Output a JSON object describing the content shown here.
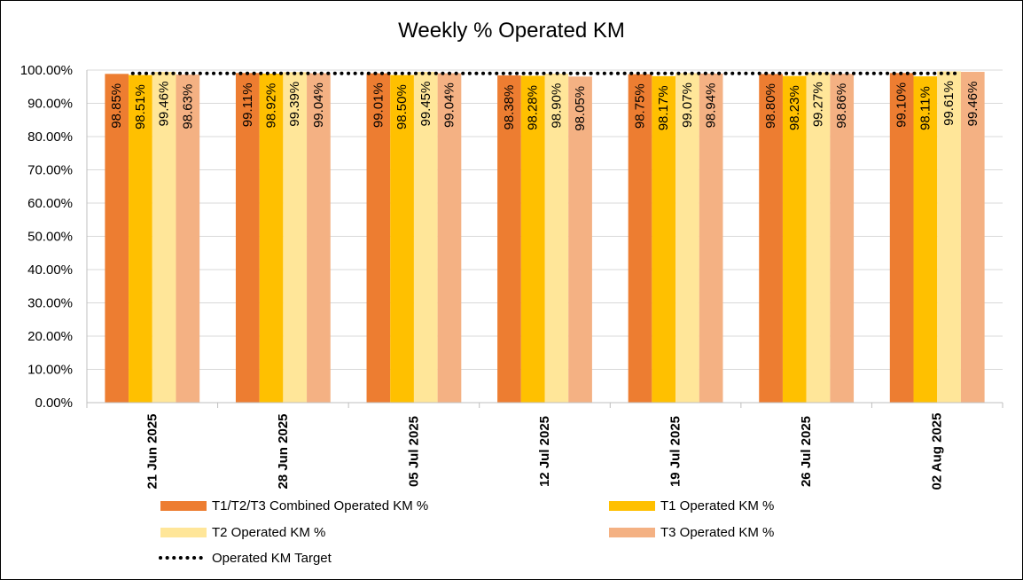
{
  "chart_data": {
    "type": "bar",
    "title": "Weekly % Operated KM",
    "categories": [
      "21 Jun 2025",
      "28 Jun 2025",
      "05 Jul 2025",
      "12 Jul 2025",
      "19 Jul 2025",
      "26 Jul 2025",
      "02 Aug 2025"
    ],
    "series": [
      {
        "name": "T1/T2/T3 Combined Operated KM %",
        "color": "#ED7D31",
        "values": [
          98.85,
          99.11,
          99.01,
          98.38,
          98.75,
          98.8,
          99.1
        ],
        "labels": [
          "98.85%",
          "99.11%",
          "99.01%",
          "98.38%",
          "98.75%",
          "98.80%",
          "99.10%"
        ]
      },
      {
        "name": "T1 Operated KM %",
        "color": "#FFC000",
        "values": [
          98.51,
          98.92,
          98.5,
          98.28,
          98.17,
          98.23,
          98.11
        ],
        "labels": [
          "98.51%",
          "98.92%",
          "98.50%",
          "98.28%",
          "98.17%",
          "98.23%",
          "98.11%"
        ]
      },
      {
        "name": "T2 Operated KM %",
        "color": "#FFE699",
        "values": [
          99.46,
          99.39,
          99.45,
          98.9,
          99.07,
          99.27,
          99.61
        ],
        "labels": [
          "99.46%",
          "99.39%",
          "99.45%",
          "98.90%",
          "99.07%",
          "99.27%",
          "99.61%"
        ]
      },
      {
        "name": "T3 Operated KM %",
        "color": "#F4B183",
        "values": [
          98.63,
          99.04,
          99.04,
          98.05,
          98.94,
          98.86,
          99.46
        ],
        "labels": [
          "98.63%",
          "99.04%",
          "99.04%",
          "98.05%",
          "98.94%",
          "98.86%",
          "99.46%"
        ]
      }
    ],
    "target": {
      "name": "Operated KM Target",
      "value": 99.0,
      "color": "#000000",
      "style": "dotted"
    },
    "ylim": [
      0,
      100
    ],
    "yticks": [
      0,
      10,
      20,
      30,
      40,
      50,
      60,
      70,
      80,
      90,
      100
    ],
    "ytick_labels": [
      "0.00%",
      "10.00%",
      "20.00%",
      "30.00%",
      "40.00%",
      "50.00%",
      "60.00%",
      "70.00%",
      "80.00%",
      "90.00%",
      "100.00%"
    ],
    "xlabel": "",
    "ylabel": "",
    "grid": true,
    "legend_position": "bottom"
  }
}
